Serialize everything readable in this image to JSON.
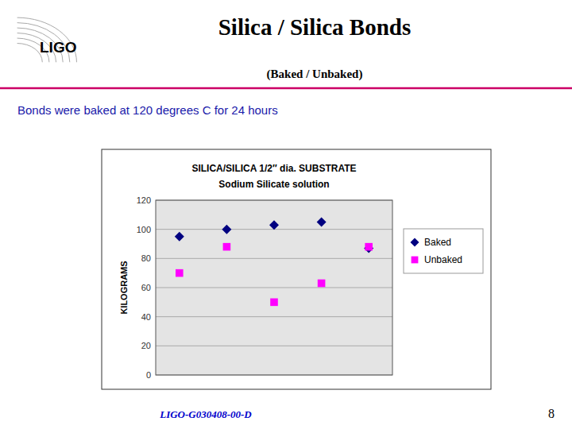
{
  "title": "Silica / Silica  Bonds",
  "subtitle": "(Baked / Unbaked)",
  "annotations": [
    "Bonds were baked at 120 degrees C for 24 hours",
    "LIGO",
    "LIGO-G030408-00-D",
    "8"
  ],
  "chart_data": {
    "type": "scatter",
    "title": "SILICA/SILICA 1/2″ dia. SUBSTRATE",
    "subtitle": "Sodium Silicate solution",
    "ylabel": "KILOGRAMS",
    "x": [
      1,
      2,
      3,
      4,
      5
    ],
    "xlim": [
      0.5,
      5.5
    ],
    "ylim": [
      0,
      120
    ],
    "yticks": [
      0,
      20,
      40,
      60,
      80,
      100,
      120
    ],
    "grid": true,
    "legend": "right",
    "tick_labels": "y",
    "series": [
      {
        "name": "Baked",
        "color": "#000080",
        "marker": "diamond",
        "values": [
          95,
          100,
          103,
          105,
          87
        ]
      },
      {
        "name": "Unbaked",
        "color": "#ff00ff",
        "marker": "square",
        "values": [
          70,
          88,
          50,
          63,
          88
        ]
      }
    ]
  }
}
